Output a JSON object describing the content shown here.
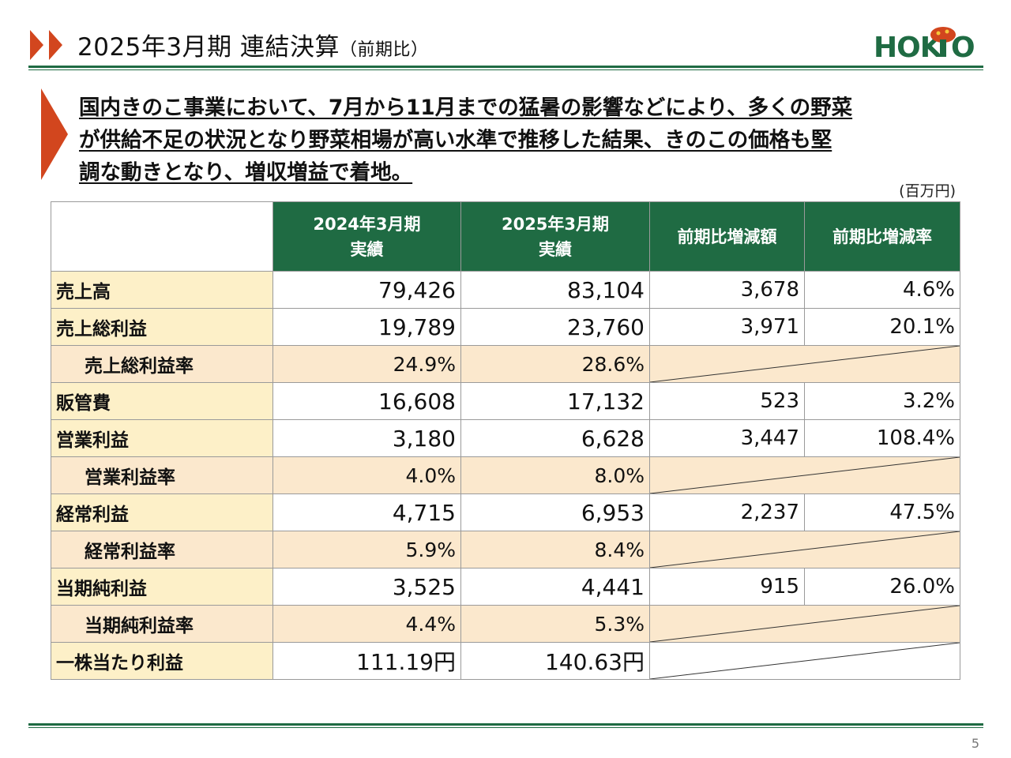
{
  "header": {
    "title": "2025年3月期 連結決算",
    "title_sub": "（前期比）",
    "logo_text": "HOKTO"
  },
  "lead": {
    "lines": [
      "国内きのこ事業において、7月から11月までの猛暑の影響などにより、多くの野菜",
      "が供給不足の状況となり野菜相場が高い水準で推移した結果、きのこの価格も堅",
      "調な動きとなり、増収増益で着地。"
    ]
  },
  "unit": "(百万円)",
  "table": {
    "headers": [
      {
        "line1": "2024年3月期",
        "line2": "実績"
      },
      {
        "line1": "2025年3月期",
        "line2": "実績"
      },
      {
        "line1": "前期比増減額",
        "line2": ""
      },
      {
        "line1": "前期比増減率",
        "line2": ""
      }
    ],
    "rows": [
      {
        "label": "売上高",
        "prev": "79,426",
        "curr": "83,104",
        "diff": "3,678",
        "rate": "4.6%"
      },
      {
        "label": "売上総利益",
        "prev": "19,789",
        "curr": "23,760",
        "diff": "3,971",
        "rate": "20.1%"
      },
      {
        "label": "売上総利益率",
        "prev": "24.9%",
        "curr": "28.6%"
      },
      {
        "label": "販管費",
        "prev": "16,608",
        "curr": "17,132",
        "diff": "523",
        "rate": "3.2%"
      },
      {
        "label": "営業利益",
        "prev": "3,180",
        "curr": "6,628",
        "diff": "3,447",
        "rate": "108.4%"
      },
      {
        "label": "営業利益率",
        "prev": "4.0%",
        "curr": "8.0%"
      },
      {
        "label": "経常利益",
        "prev": "4,715",
        "curr": "6,953",
        "diff": "2,237",
        "rate": "47.5%"
      },
      {
        "label": "経常利益率",
        "prev": "5.9%",
        "curr": "8.4%"
      },
      {
        "label": "当期純利益",
        "prev": "3,525",
        "curr": "4,441",
        "diff": "915",
        "rate": "26.0%"
      },
      {
        "label": "当期純利益率",
        "prev": "4.4%",
        "curr": "5.3%"
      },
      {
        "label": "一株当たり利益",
        "prev": "111.19円",
        "curr": "140.63円"
      }
    ]
  },
  "page_number": "5",
  "colors": {
    "accent_green": "#1f6b43",
    "arrow_orange": "#d2461e",
    "label_bg": "#fdf0c8",
    "ratio_bg": "#fbe8cd"
  }
}
